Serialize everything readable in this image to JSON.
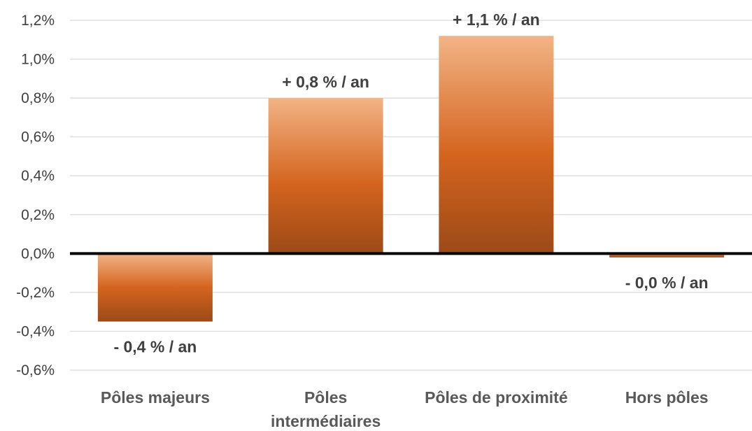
{
  "chart_data": {
    "type": "bar",
    "categories": [
      "Pôles majeurs",
      "Pôles intermédiaires",
      "Pôles de proximité",
      "Hors pôles"
    ],
    "category_lines": [
      [
        "Pôles majeurs"
      ],
      [
        "Pôles",
        "intermédiaires"
      ],
      [
        "Pôles de proximité"
      ],
      [
        "Hors pôles"
      ]
    ],
    "values": [
      -0.35,
      0.8,
      1.12,
      -0.02
    ],
    "data_labels": [
      "- 0,4 % / an",
      "+ 0,8 % / an",
      "+ 1,1 % / an",
      "- 0,0 % / an"
    ],
    "yticks": [
      "-0,6%",
      "-0,4%",
      "-0,2%",
      "0,0%",
      "0,2%",
      "0,4%",
      "0,6%",
      "0,8%",
      "1,0%",
      "1,2%"
    ],
    "ytick_values": [
      -0.6,
      -0.4,
      -0.2,
      0.0,
      0.2,
      0.4,
      0.6,
      0.8,
      1.0,
      1.2
    ],
    "ylim": [
      -0.6,
      1.2
    ],
    "grid": true,
    "legend": "none",
    "title": "",
    "xlabel": "",
    "ylabel": "",
    "colors": {
      "bar_light": "#f2b486",
      "bar_mid": "#d4641e",
      "bar_dark": "#9c4a18",
      "zero_line": "#000000",
      "grid": "#d9d9d9"
    }
  }
}
